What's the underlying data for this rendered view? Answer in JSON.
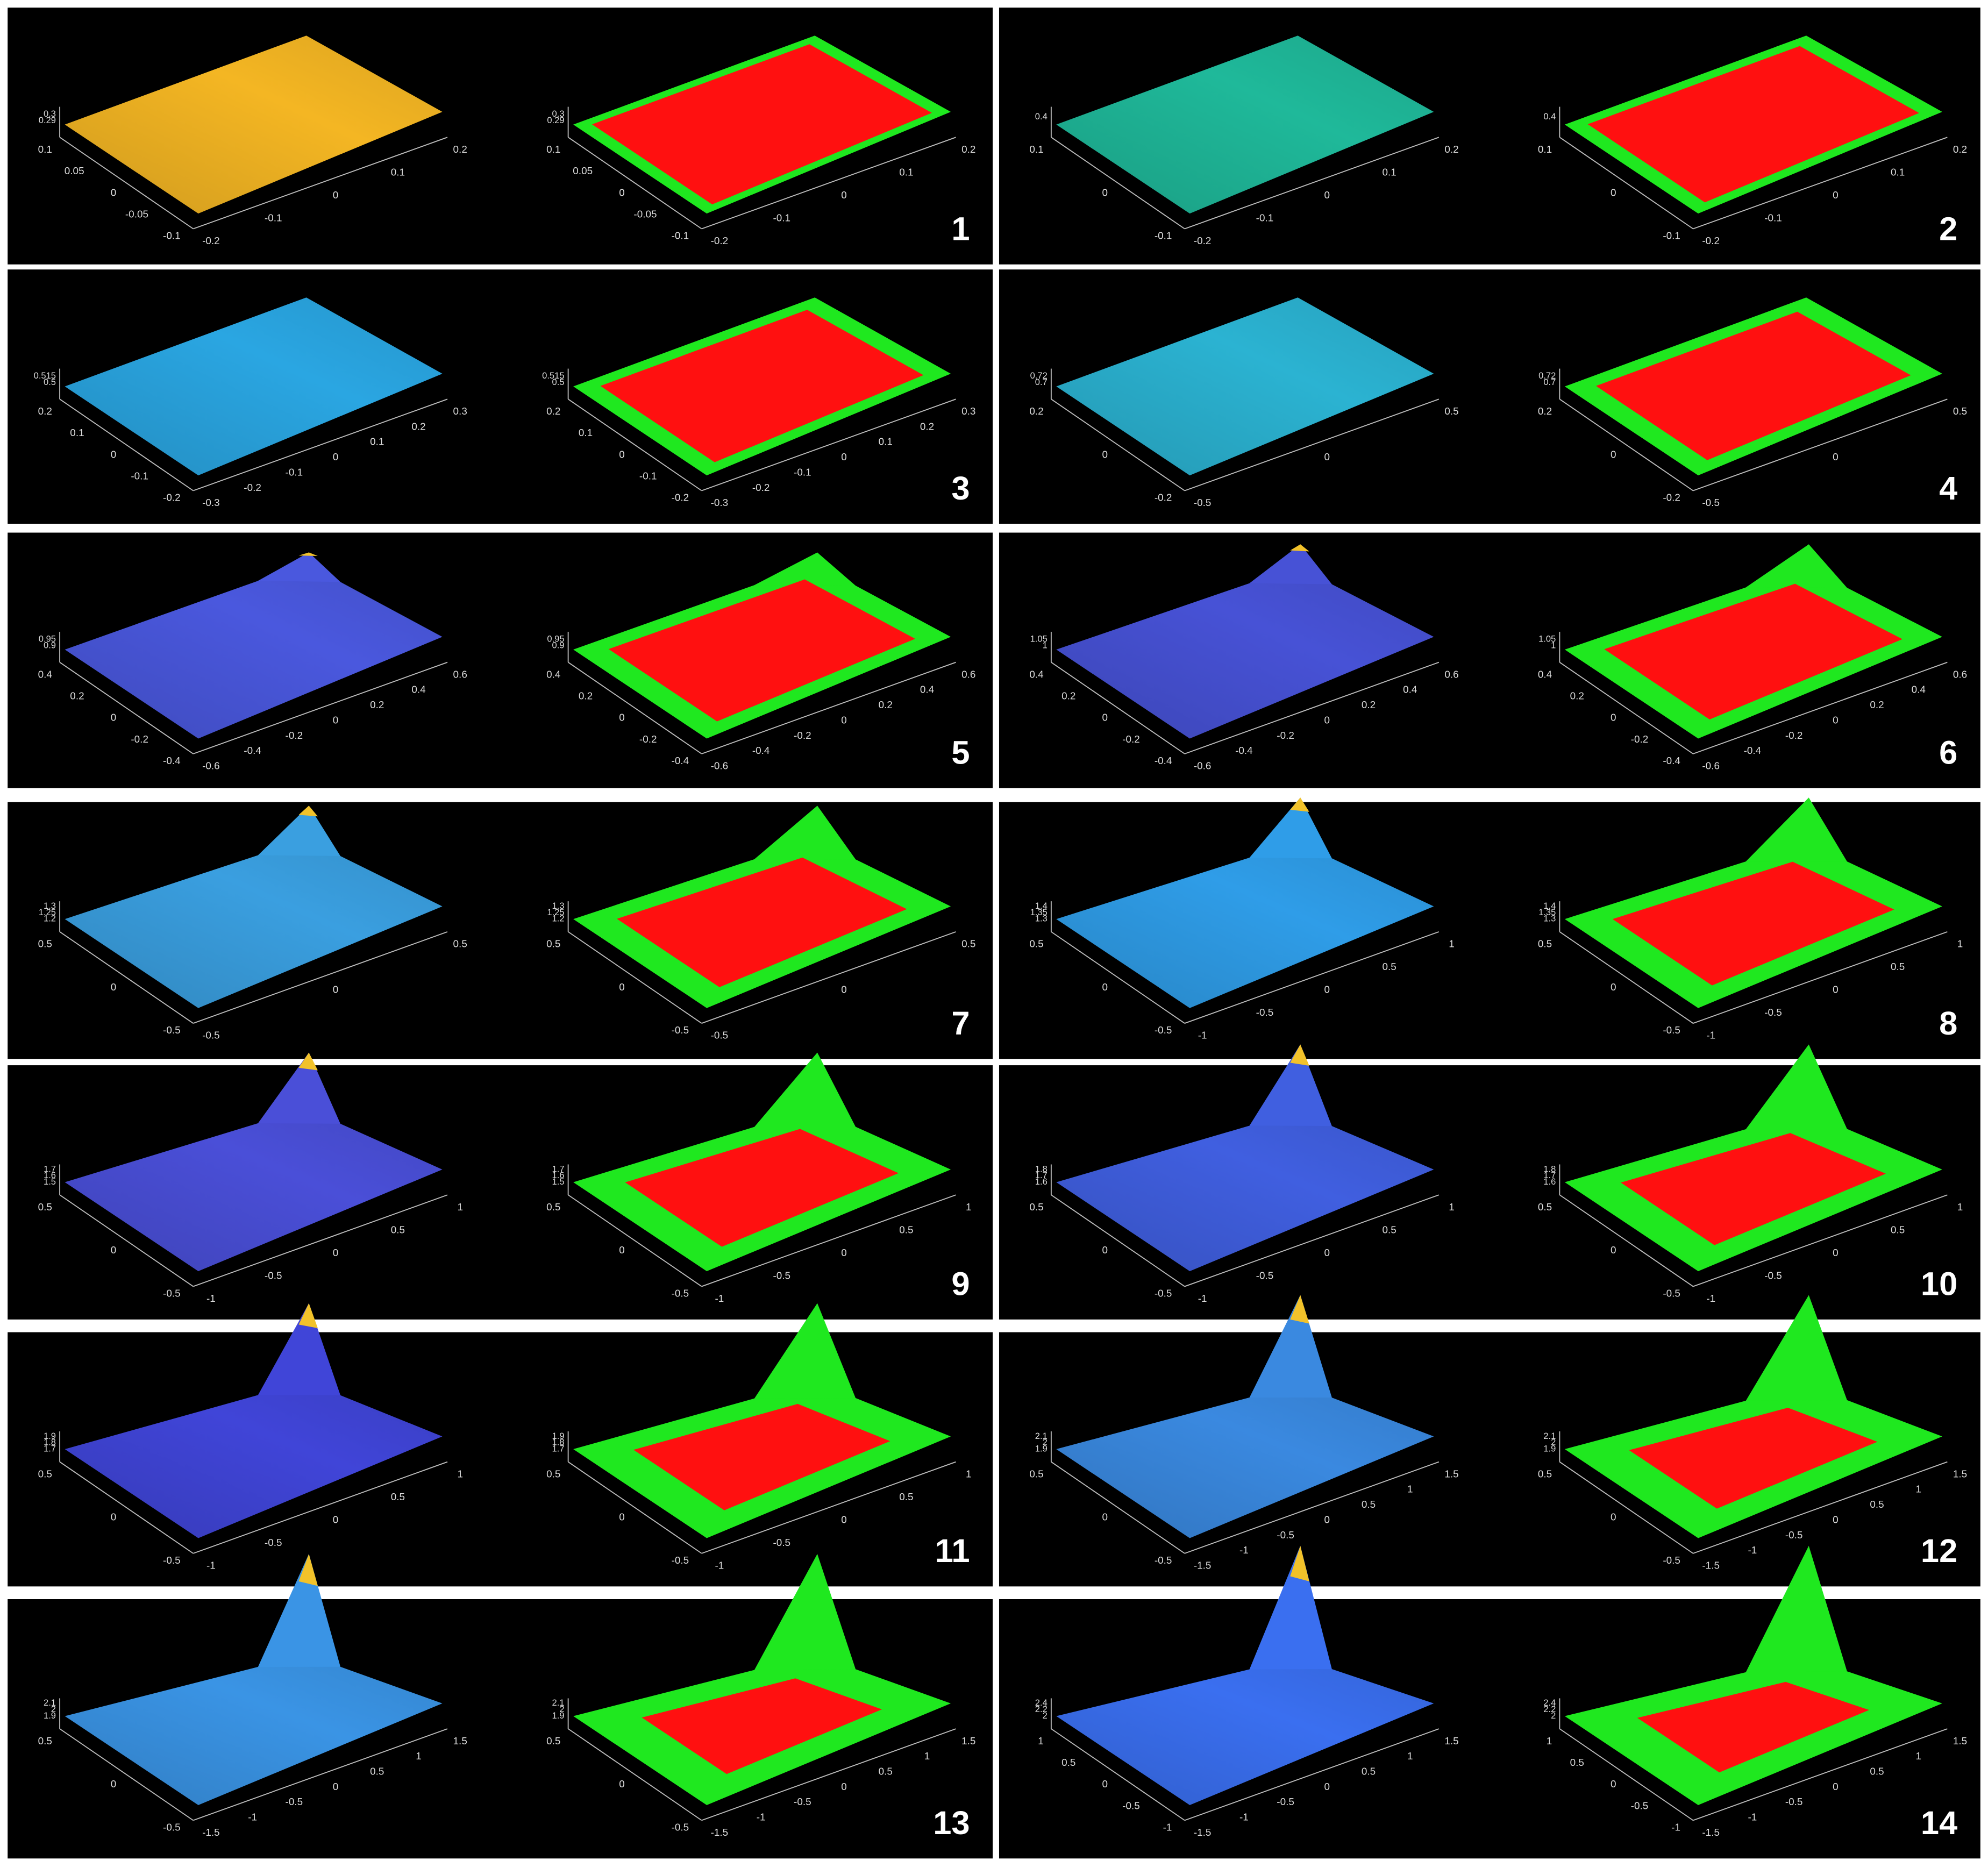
{
  "panels": [
    {
      "label": "1",
      "color": "#f4b623",
      "zticks": [
        "0.3",
        "0.29"
      ],
      "yticks": [
        "0.1",
        "0.05",
        "0",
        "-0.05",
        "-0.1"
      ],
      "xticks": [
        "-0.2",
        "-0.1",
        "0",
        "0.1",
        "0.2"
      ]
    },
    {
      "label": "2",
      "color": "#1fb99a",
      "zticks": [
        "0.4"
      ],
      "yticks": [
        "0.1",
        "0",
        "-0.1"
      ],
      "xticks": [
        "-0.2",
        "-0.1",
        "0",
        "0.1",
        "0.2"
      ]
    },
    {
      "label": "3",
      "color": "#2aa6e2",
      "zticks": [
        "0.515",
        "0.5"
      ],
      "yticks": [
        "0.2",
        "0.1",
        "0",
        "-0.1",
        "-0.2"
      ],
      "xticks": [
        "-0.3",
        "-0.2",
        "-0.1",
        "0",
        "0.1",
        "0.2",
        "0.3"
      ]
    },
    {
      "label": "4",
      "color": "#2bb3d2",
      "zticks": [
        "0.72",
        "0.7"
      ],
      "yticks": [
        "0.2",
        "0",
        "-0.2"
      ],
      "xticks": [
        "-0.5",
        "0",
        "0.5"
      ]
    },
    {
      "label": "5",
      "color": "#4a58de",
      "zticks": [
        "0.95",
        "0.9"
      ],
      "yticks": [
        "0.4",
        "0.2",
        "0",
        "-0.2",
        "-0.4"
      ],
      "xticks": [
        "-0.6",
        "-0.4",
        "-0.2",
        "0",
        "0.2",
        "0.4",
        "0.6"
      ]
    },
    {
      "label": "6",
      "color": "#4752d6",
      "zticks": [
        "1.05",
        "1"
      ],
      "yticks": [
        "0.4",
        "0.2",
        "0",
        "-0.2",
        "-0.4"
      ],
      "xticks": [
        "-0.6",
        "-0.4",
        "-0.2",
        "0",
        "0.2",
        "0.4",
        "0.6"
      ]
    },
    {
      "label": "7",
      "color": "#3a9fe0",
      "zticks": [
        "1.3",
        "1.25",
        "1.2"
      ],
      "yticks": [
        "0.5",
        "0",
        "-0.5"
      ],
      "xticks": [
        "-0.5",
        "0",
        "0.5"
      ]
    },
    {
      "label": "8",
      "color": "#2f9de8",
      "zticks": [
        "1.4",
        "1.35",
        "1.3"
      ],
      "yticks": [
        "0.5",
        "0",
        "-0.5"
      ],
      "xticks": [
        "-1",
        "-0.5",
        "0",
        "0.5",
        "1"
      ]
    },
    {
      "label": "9",
      "color": "#4a4fd8",
      "zticks": [
        "1.7",
        "1.6",
        "1.5"
      ],
      "yticks": [
        "0.5",
        "0",
        "-0.5"
      ],
      "xticks": [
        "-1",
        "-0.5",
        "0",
        "0.5",
        "1"
      ]
    },
    {
      "label": "10",
      "color": "#405fe0",
      "zticks": [
        "1.8",
        "1.7",
        "1.6"
      ],
      "yticks": [
        "0.5",
        "0",
        "-0.5"
      ],
      "xticks": [
        "-1",
        "-0.5",
        "0",
        "0.5",
        "1"
      ]
    },
    {
      "label": "11",
      "color": "#4045d8",
      "zticks": [
        "1.9",
        "1.8",
        "1.7"
      ],
      "yticks": [
        "0.5",
        "0",
        "-0.5"
      ],
      "xticks": [
        "-1",
        "-0.5",
        "0",
        "0.5",
        "1"
      ]
    },
    {
      "label": "12",
      "color": "#3a89e0",
      "zticks": [
        "2.1",
        "2",
        "1.9"
      ],
      "yticks": [
        "0.5",
        "0",
        "-0.5"
      ],
      "xticks": [
        "-1.5",
        "-1",
        "-0.5",
        "0",
        "0.5",
        "1",
        "1.5"
      ]
    },
    {
      "label": "13",
      "color": "#3a94e5",
      "zticks": [
        "2.1",
        "2",
        "1.9"
      ],
      "yticks": [
        "0.5",
        "0",
        "-0.5"
      ],
      "xticks": [
        "-1.5",
        "-1",
        "-0.5",
        "0",
        "0.5",
        "1",
        "1.5"
      ]
    },
    {
      "label": "14",
      "color": "#3a6ff0",
      "zticks": [
        "2.4",
        "2.2",
        "2"
      ],
      "yticks": [
        "1",
        "0.5",
        "0",
        "-0.5",
        "-1"
      ],
      "xticks": [
        "-1.5",
        "-1",
        "-0.5",
        "0",
        "0.5",
        "1",
        "1.5"
      ]
    }
  ]
}
